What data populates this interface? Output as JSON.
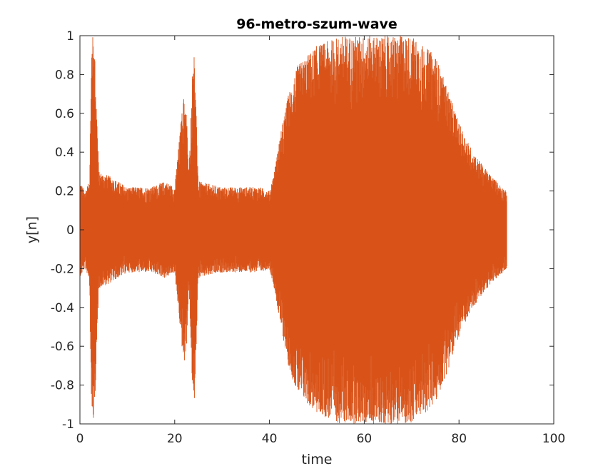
{
  "chart_data": {
    "type": "line",
    "title": "96-metro-szum-wave",
    "xlabel": "time",
    "ylabel": "y[n]",
    "xlim": [
      0,
      100
    ],
    "ylim": [
      -1,
      1
    ],
    "xticks": [
      0,
      20,
      40,
      60,
      80,
      100
    ],
    "xtick_labels": [
      "0",
      "20",
      "40",
      "60",
      "80",
      "100"
    ],
    "yticks": [
      -1,
      -0.8,
      -0.6,
      -0.4,
      -0.2,
      0,
      0.2,
      0.4,
      0.6,
      0.8,
      1
    ],
    "ytick_labels": [
      "-1",
      "-0.8",
      "-0.6",
      "-0.4",
      "-0.2",
      "0",
      "0.2",
      "0.4",
      "0.6",
      "0.8",
      "1"
    ],
    "grid": false,
    "box": true,
    "series": [
      {
        "color": "#d95319",
        "x_range": [
          0,
          90
        ],
        "envelope": {
          "x": [
            0,
            1,
            2,
            2.5,
            3,
            4,
            6,
            10,
            15,
            18,
            20,
            21.5,
            22,
            22.5,
            23,
            24,
            25,
            30,
            35,
            38,
            40,
            41,
            42,
            44,
            46,
            50,
            55,
            60,
            65,
            70,
            75,
            78,
            80,
            83,
            86,
            88,
            90
          ],
          "amp": [
            0.25,
            0.2,
            0.25,
            1.0,
            1.0,
            0.3,
            0.28,
            0.22,
            0.22,
            0.25,
            0.22,
            0.6,
            0.7,
            0.6,
            0.3,
            1.0,
            0.25,
            0.22,
            0.22,
            0.22,
            0.2,
            0.3,
            0.45,
            0.7,
            0.85,
            0.95,
            1.0,
            1.0,
            1.0,
            1.0,
            0.9,
            0.7,
            0.55,
            0.4,
            0.3,
            0.25,
            0.2
          ]
        }
      }
    ]
  }
}
